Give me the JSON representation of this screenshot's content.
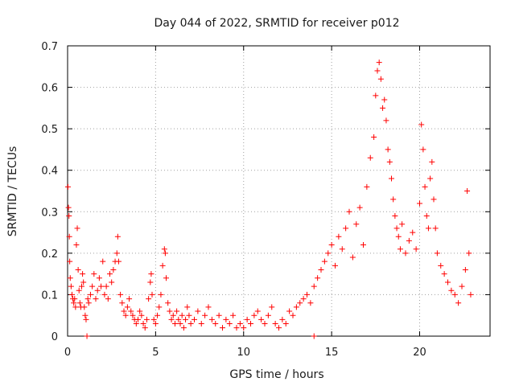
{
  "chart_data": {
    "type": "scatter",
    "title": "Day 044 of 2022, SRMTID for receiver p012",
    "xlabel": "GPS time / hours",
    "ylabel": "SRMTID / TECUs",
    "xlim": [
      0,
      24
    ],
    "ylim": [
      0,
      0.7
    ],
    "xticks": [
      0,
      5,
      10,
      15,
      20
    ],
    "xtick_labels": [
      "0",
      "5",
      "10",
      "15",
      "20"
    ],
    "yticks": [
      0,
      0.1,
      0.2,
      0.3,
      0.4,
      0.5,
      0.6,
      0.7
    ],
    "ytick_labels": [
      "0",
      "0.1",
      "0.2",
      "0.3",
      "0.4",
      "0.5",
      "0.6",
      "0.7"
    ],
    "grid": true,
    "marker": "+",
    "color": "#ff0000",
    "series": [
      {
        "name": "SRMTID",
        "points": [
          [
            0.02,
            0.36
          ],
          [
            0.05,
            0.31
          ],
          [
            0.08,
            0.29
          ],
          [
            0.1,
            0.24
          ],
          [
            0.12,
            0.18
          ],
          [
            0.15,
            0.14
          ],
          [
            0.2,
            0.12
          ],
          [
            0.25,
            0.1
          ],
          [
            0.3,
            0.09
          ],
          [
            0.35,
            0.08
          ],
          [
            0.4,
            0.09
          ],
          [
            0.45,
            0.07
          ],
          [
            0.5,
            0.22
          ],
          [
            0.55,
            0.26
          ],
          [
            0.6,
            0.16
          ],
          [
            0.65,
            0.11
          ],
          [
            0.7,
            0.08
          ],
          [
            0.75,
            0.07
          ],
          [
            0.8,
            0.12
          ],
          [
            0.85,
            0.15
          ],
          [
            0.9,
            0.13
          ],
          [
            0.95,
            0.07
          ],
          [
            1.0,
            0.05
          ],
          [
            1.05,
            0.04
          ],
          [
            1.1,
            0.0
          ],
          [
            1.15,
            0.09
          ],
          [
            1.2,
            0.08
          ],
          [
            1.3,
            0.1
          ],
          [
            1.4,
            0.12
          ],
          [
            1.5,
            0.15
          ],
          [
            1.6,
            0.09
          ],
          [
            1.7,
            0.11
          ],
          [
            1.8,
            0.14
          ],
          [
            1.9,
            0.12
          ],
          [
            2.0,
            0.18
          ],
          [
            2.1,
            0.1
          ],
          [
            2.2,
            0.12
          ],
          [
            2.3,
            0.09
          ],
          [
            2.4,
            0.15
          ],
          [
            2.5,
            0.13
          ],
          [
            2.6,
            0.16
          ],
          [
            2.7,
            0.18
          ],
          [
            2.8,
            0.2
          ],
          [
            2.85,
            0.24
          ],
          [
            2.9,
            0.18
          ],
          [
            3.0,
            0.1
          ],
          [
            3.1,
            0.08
          ],
          [
            3.2,
            0.06
          ],
          [
            3.3,
            0.05
          ],
          [
            3.4,
            0.07
          ],
          [
            3.5,
            0.09
          ],
          [
            3.6,
            0.06
          ],
          [
            3.7,
            0.05
          ],
          [
            3.8,
            0.04
          ],
          [
            3.9,
            0.03
          ],
          [
            4.0,
            0.04
          ],
          [
            4.1,
            0.06
          ],
          [
            4.2,
            0.05
          ],
          [
            4.3,
            0.03
          ],
          [
            4.4,
            0.02
          ],
          [
            4.5,
            0.04
          ],
          [
            4.6,
            0.09
          ],
          [
            4.7,
            0.13
          ],
          [
            4.75,
            0.15
          ],
          [
            4.8,
            0.1
          ],
          [
            4.9,
            0.04
          ],
          [
            5.0,
            0.03
          ],
          [
            5.1,
            0.05
          ],
          [
            5.2,
            0.07
          ],
          [
            5.3,
            0.1
          ],
          [
            5.4,
            0.17
          ],
          [
            5.5,
            0.21
          ],
          [
            5.55,
            0.2
          ],
          [
            5.6,
            0.14
          ],
          [
            5.7,
            0.08
          ],
          [
            5.8,
            0.06
          ],
          [
            5.9,
            0.04
          ],
          [
            6.0,
            0.05
          ],
          [
            6.1,
            0.03
          ],
          [
            6.2,
            0.06
          ],
          [
            6.3,
            0.04
          ],
          [
            6.4,
            0.03
          ],
          [
            6.5,
            0.05
          ],
          [
            6.6,
            0.02
          ],
          [
            6.7,
            0.04
          ],
          [
            6.8,
            0.07
          ],
          [
            6.9,
            0.05
          ],
          [
            7.0,
            0.03
          ],
          [
            7.2,
            0.04
          ],
          [
            7.4,
            0.06
          ],
          [
            7.6,
            0.03
          ],
          [
            7.8,
            0.05
          ],
          [
            8.0,
            0.07
          ],
          [
            8.2,
            0.04
          ],
          [
            8.4,
            0.03
          ],
          [
            8.6,
            0.05
          ],
          [
            8.8,
            0.02
          ],
          [
            9.0,
            0.04
          ],
          [
            9.2,
            0.03
          ],
          [
            9.4,
            0.05
          ],
          [
            9.6,
            0.02
          ],
          [
            9.8,
            0.03
          ],
          [
            10.0,
            0.02
          ],
          [
            10.2,
            0.04
          ],
          [
            10.4,
            0.03
          ],
          [
            10.6,
            0.05
          ],
          [
            10.8,
            0.06
          ],
          [
            11.0,
            0.04
          ],
          [
            11.2,
            0.03
          ],
          [
            11.4,
            0.05
          ],
          [
            11.6,
            0.07
          ],
          [
            11.8,
            0.03
          ],
          [
            12.0,
            0.02
          ],
          [
            12.2,
            0.04
          ],
          [
            12.4,
            0.03
          ],
          [
            12.6,
            0.06
          ],
          [
            12.8,
            0.05
          ],
          [
            13.0,
            0.07
          ],
          [
            13.2,
            0.08
          ],
          [
            13.4,
            0.09
          ],
          [
            13.6,
            0.1
          ],
          [
            13.8,
            0.08
          ],
          [
            14.0,
            0.0
          ],
          [
            14.0,
            0.12
          ],
          [
            14.2,
            0.14
          ],
          [
            14.4,
            0.16
          ],
          [
            14.6,
            0.18
          ],
          [
            14.8,
            0.2
          ],
          [
            15.0,
            0.22
          ],
          [
            15.2,
            0.17
          ],
          [
            15.4,
            0.24
          ],
          [
            15.6,
            0.21
          ],
          [
            15.8,
            0.26
          ],
          [
            16.0,
            0.3
          ],
          [
            16.2,
            0.19
          ],
          [
            16.4,
            0.27
          ],
          [
            16.6,
            0.31
          ],
          [
            16.8,
            0.22
          ],
          [
            17.0,
            0.36
          ],
          [
            17.2,
            0.43
          ],
          [
            17.4,
            0.48
          ],
          [
            17.5,
            0.58
          ],
          [
            17.6,
            0.64
          ],
          [
            17.7,
            0.66
          ],
          [
            17.8,
            0.62
          ],
          [
            17.9,
            0.55
          ],
          [
            18.0,
            0.57
          ],
          [
            18.1,
            0.52
          ],
          [
            18.2,
            0.45
          ],
          [
            18.3,
            0.42
          ],
          [
            18.4,
            0.38
          ],
          [
            18.5,
            0.33
          ],
          [
            18.6,
            0.29
          ],
          [
            18.7,
            0.26
          ],
          [
            18.8,
            0.24
          ],
          [
            18.9,
            0.21
          ],
          [
            19.0,
            0.27
          ],
          [
            19.2,
            0.2
          ],
          [
            19.4,
            0.23
          ],
          [
            19.6,
            0.25
          ],
          [
            19.8,
            0.21
          ],
          [
            20.0,
            0.32
          ],
          [
            20.1,
            0.51
          ],
          [
            20.2,
            0.45
          ],
          [
            20.3,
            0.36
          ],
          [
            20.4,
            0.29
          ],
          [
            20.5,
            0.26
          ],
          [
            20.6,
            0.38
          ],
          [
            20.7,
            0.42
          ],
          [
            20.8,
            0.33
          ],
          [
            20.9,
            0.26
          ],
          [
            21.0,
            0.2
          ],
          [
            21.2,
            0.17
          ],
          [
            21.4,
            0.15
          ],
          [
            21.6,
            0.13
          ],
          [
            21.8,
            0.11
          ],
          [
            22.0,
            0.1
          ],
          [
            22.2,
            0.08
          ],
          [
            22.4,
            0.12
          ],
          [
            22.6,
            0.16
          ],
          [
            22.7,
            0.35
          ],
          [
            22.8,
            0.2
          ],
          [
            22.9,
            0.1
          ]
        ]
      }
    ]
  }
}
